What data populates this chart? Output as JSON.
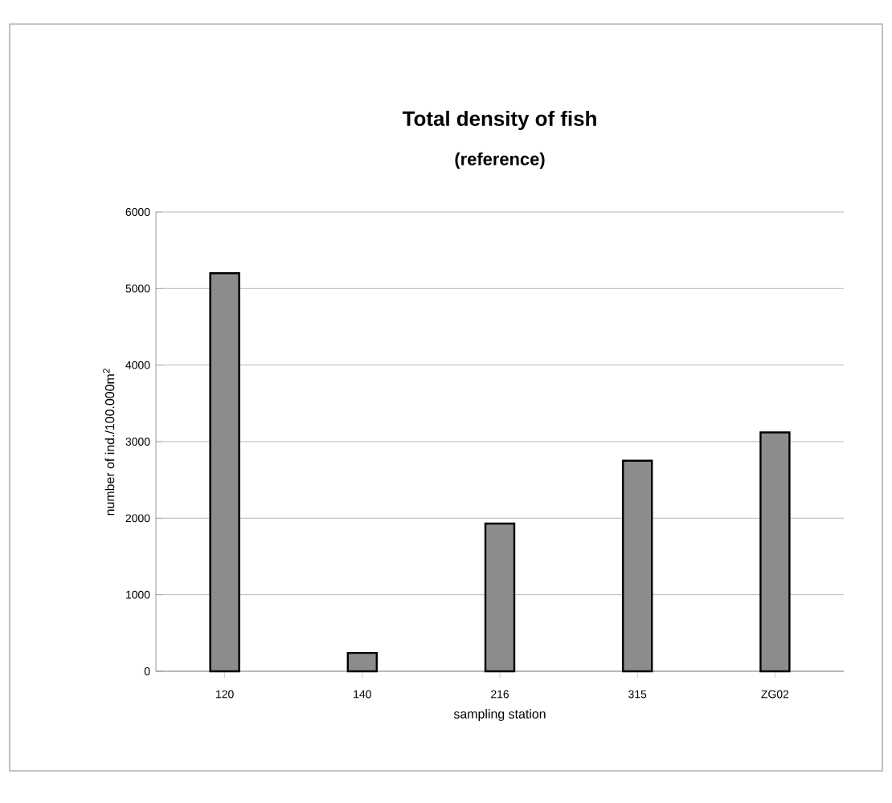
{
  "chart_data": {
    "type": "bar",
    "title": "Total density of fish",
    "subtitle": "(reference)",
    "xlabel": "sampling station",
    "ylabel": "number of ind./100.000m$^{2}$",
    "categories": [
      "120",
      "140",
      "216",
      "315",
      "ZG02"
    ],
    "values": [
      5200,
      240,
      1930,
      2750,
      3120
    ],
    "color": "#8c8c8c",
    "ylim": [
      0,
      6000
    ],
    "yticks": [
      0,
      1000,
      2000,
      3000,
      4000,
      5000,
      6000
    ],
    "grid": "y"
  }
}
